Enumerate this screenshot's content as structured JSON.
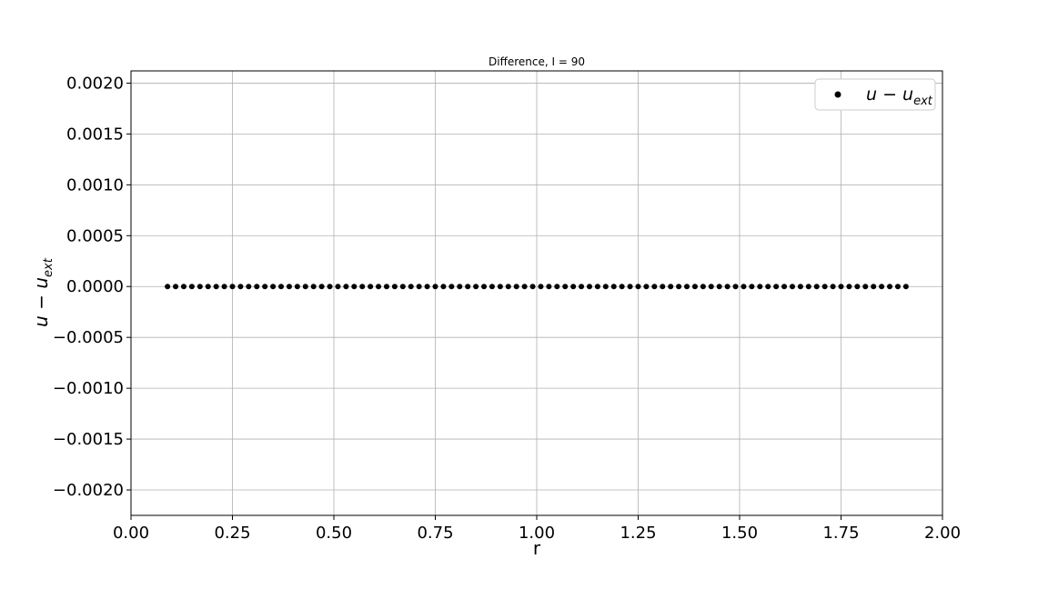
{
  "chart_data": {
    "type": "scatter",
    "title": "Difference, I = 90",
    "xlabel": "r",
    "ylabel": "u − u_ext",
    "xlim": [
      0.0,
      2.0
    ],
    "ylim": [
      -0.00225,
      0.00212
    ],
    "x_ticks": [
      "0.00",
      "0.25",
      "0.50",
      "0.75",
      "1.00",
      "1.25",
      "1.50",
      "1.75",
      "2.00"
    ],
    "y_ticks": [
      "−0.0020",
      "−0.0015",
      "−0.0010",
      "−0.0005",
      "0.0000",
      "0.0005",
      "0.0010",
      "0.0015",
      "0.0020"
    ],
    "grid": true,
    "legend_position": "top-right",
    "marker_color": "#000000",
    "series": [
      {
        "name": "u − u_ext",
        "x_start": 0.09,
        "x_end": 1.91,
        "x_step": 0.02,
        "y_value": 0.0
      }
    ]
  }
}
